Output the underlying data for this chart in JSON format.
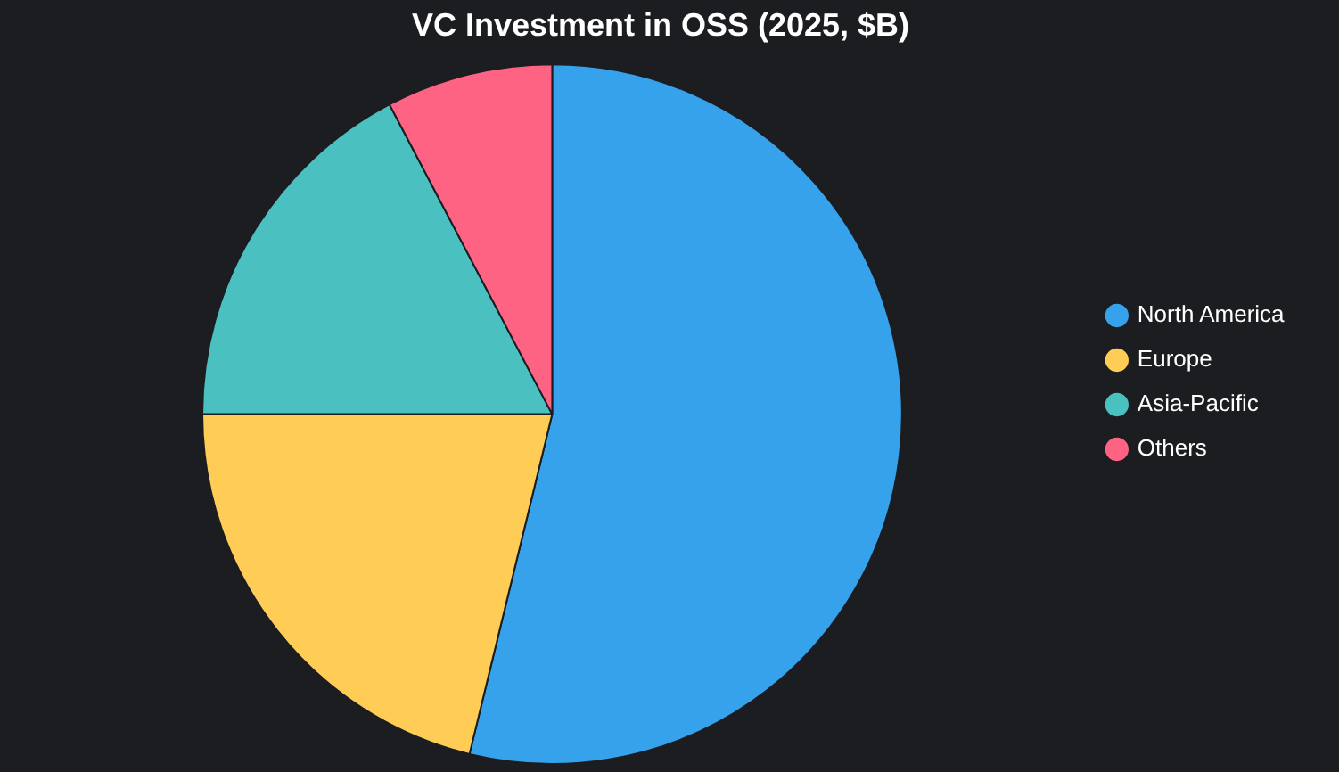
{
  "chart_data": {
    "type": "pie",
    "title": "VC Investment in OSS (2025, $B)",
    "categories": [
      "North America",
      "Europe",
      "Asia-Pacific",
      "Others"
    ],
    "values": [
      53.8,
      21.2,
      17.3,
      7.7
    ],
    "colors": [
      "#36a2eb",
      "#ffcd56",
      "#4bc0c0",
      "#ff6384"
    ],
    "legend": "right"
  }
}
